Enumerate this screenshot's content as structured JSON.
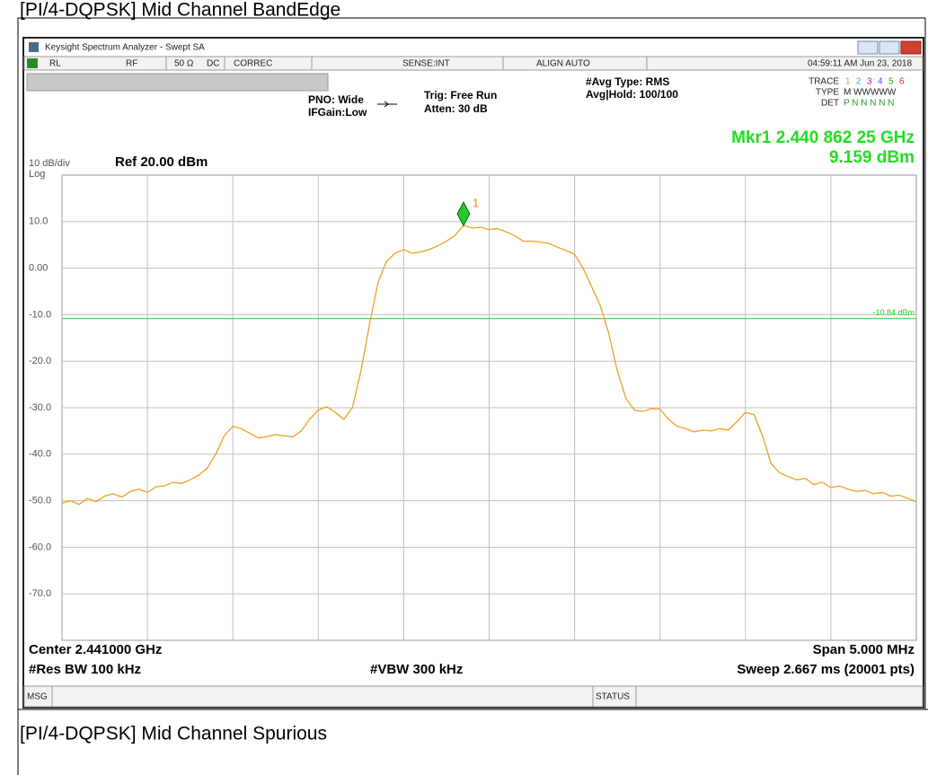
{
  "doc_title": "[PI/4-DQPSK] Mid Channel BandEdge",
  "next_title": "[PI/4-DQPSK] Mid Channel Spurious",
  "window_title": "Keysight Spectrum Analyzer - Swept SA",
  "status_bar": {
    "rl": "RL",
    "rf": "RF",
    "impedance": "50 Ω",
    "coupling": "DC",
    "correc": "CORREC",
    "sense": "SENSE:INT",
    "align": "ALIGN AUTO",
    "clock": "04:59:11 AM Jun 23, 2018"
  },
  "settings": {
    "pno": "PNO: Wide",
    "ifgain": "IFGain:Low",
    "trig": "Trig: Free Run",
    "atten": "Atten: 30 dB",
    "avg_type": "#Avg Type: RMS",
    "avg_hold": "Avg|Hold: 100/100"
  },
  "trace_panel": {
    "trace_label": "TRACE",
    "traces": [
      "1",
      "2",
      "3",
      "4",
      "5",
      "6"
    ],
    "type_label": "TYPE",
    "types": "M WWWWW",
    "det_label": "DET",
    "dets": "P N N N N N"
  },
  "marker_readout": {
    "frequency": "Mkr1 2.440 862 25 GHz",
    "level": "9.159 dBm"
  },
  "scale": {
    "per_div": "10 dB/div",
    "log": "Log",
    "ref": "Ref 20.00 dBm"
  },
  "footer": {
    "center": "Center 2.441000 GHz",
    "span": "Span 5.000 MHz",
    "rbw": "#Res BW 100 kHz",
    "vbw": "#VBW 300 kHz",
    "sweep": "Sweep  2.667 ms (20001 pts)",
    "msg": "MSG",
    "status": "STATUS"
  },
  "chart_data": {
    "type": "line",
    "color": "#f0a020",
    "ylim": [
      -80,
      20
    ],
    "yticks": [
      {
        "value": 10,
        "label": "10.0"
      },
      {
        "value": 0,
        "label": "0.00"
      },
      {
        "value": -10,
        "label": "-10.0"
      },
      {
        "value": -20,
        "label": "-20.0"
      },
      {
        "value": -30,
        "label": "-30.0"
      },
      {
        "value": -40,
        "label": "-40.0"
      },
      {
        "value": -50,
        "label": "-50.0"
      },
      {
        "value": -60,
        "label": "-60.0"
      },
      {
        "value": -70,
        "label": "-70.0"
      }
    ],
    "grid": true,
    "display_line": {
      "value": -10.84,
      "label": "-10.84 dBm",
      "color": "#22cc22"
    },
    "marker": {
      "label": "1",
      "value": 9.159,
      "index": 47,
      "color": "#22cc22"
    },
    "values": [
      -50.5,
      -50,
      -50.8,
      -49.5,
      -50.2,
      -49,
      -48.5,
      -49.2,
      -48,
      -47.5,
      -48.2,
      -47,
      -46.8,
      -46,
      -46.3,
      -45.5,
      -44.5,
      -43,
      -40,
      -36,
      -34,
      -34.5,
      -35.5,
      -36.5,
      -36.2,
      -35.8,
      -36,
      -36.3,
      -35,
      -32.5,
      -30.5,
      -29.8,
      -31,
      -32.5,
      -30,
      -22,
      -12,
      -3,
      1.5,
      3.2,
      4,
      3.2,
      3.5,
      4,
      4.8,
      5.8,
      7,
      9.2,
      8.6,
      8.8,
      8.3,
      8.5,
      7.8,
      7,
      5.8,
      5.8,
      5.6,
      5.3,
      4.5,
      3.8,
      3,
      0,
      -4,
      -8,
      -14,
      -22,
      -28,
      -30.5,
      -30.8,
      -30.2,
      -30.3,
      -32.5,
      -34,
      -34.5,
      -35.2,
      -34.8,
      -35,
      -34.5,
      -34.8,
      -33,
      -31,
      -31.5,
      -36,
      -42,
      -44,
      -44.8,
      -45.5,
      -45.2,
      -46.5,
      -46,
      -47.2,
      -46.8,
      -47.5,
      -48,
      -47.8,
      -48.5,
      -48.2,
      -49,
      -48.8,
      -49.5,
      -50.2
    ]
  }
}
